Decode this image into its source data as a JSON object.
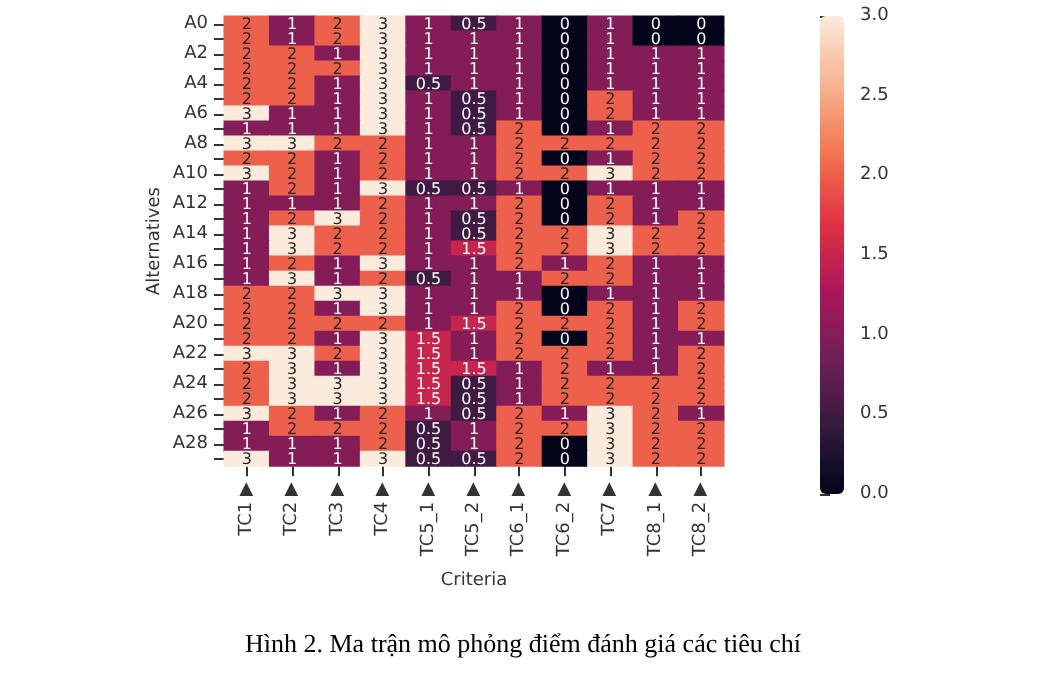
{
  "chart_data": {
    "type": "heatmap",
    "xlabel": "Criteria",
    "ylabel": "Alternatives",
    "annotations": [
      "Hình 2. Ma trận mô phỏng điểm đánh giá các tiêu chí"
    ],
    "categories": [
      "TC1 ▶",
      "TC2 ▶",
      "TC3 ▶",
      "TC4 ▶",
      "TC5_1 ▶",
      "TC5_2 ▶",
      "TC6_1 ▶",
      "TC6_2 ▶",
      "TC7 ▶",
      "TC8_1 ▶",
      "TC8_2 ▶"
    ],
    "y_categories": [
      "A0",
      null,
      "A2",
      null,
      "A4",
      null,
      "A6",
      null,
      "A8",
      null,
      "A10",
      null,
      "A12",
      null,
      "A14",
      null,
      "A16",
      null,
      "A18",
      null,
      "A20",
      null,
      "A22",
      null,
      "A24",
      null,
      "A26",
      null,
      "A28",
      null
    ],
    "cells": [
      [
        2,
        1,
        2,
        3,
        1,
        0.5,
        1,
        0,
        1,
        0,
        0
      ],
      [
        2,
        1,
        2,
        3,
        1,
        1,
        1,
        0,
        1,
        0,
        0
      ],
      [
        2,
        2,
        1,
        3,
        1,
        1,
        1,
        0,
        1,
        1,
        1
      ],
      [
        2,
        2,
        2,
        3,
        1,
        1,
        1,
        0,
        1,
        1,
        1
      ],
      [
        2,
        2,
        1,
        3,
        0.5,
        1,
        1,
        0,
        1,
        1,
        1
      ],
      [
        2,
        2,
        1,
        3,
        1,
        0.5,
        1,
        0,
        2,
        1,
        1
      ],
      [
        3,
        1,
        1,
        3,
        1,
        0.5,
        1,
        0,
        2,
        1,
        1
      ],
      [
        1,
        1,
        1,
        3,
        1,
        0.5,
        2,
        0,
        1,
        2,
        2
      ],
      [
        3,
        3,
        2,
        2,
        1,
        1,
        2,
        2,
        2,
        2,
        2
      ],
      [
        2,
        2,
        1,
        2,
        1,
        1,
        2,
        0,
        1,
        2,
        2
      ],
      [
        3,
        2,
        1,
        2,
        1,
        1,
        2,
        2,
        3,
        2,
        2
      ],
      [
        1,
        2,
        1,
        3,
        0.5,
        0.5,
        1,
        0,
        1,
        1,
        1
      ],
      [
        1,
        1,
        1,
        2,
        1,
        1,
        2,
        0,
        2,
        1,
        1
      ],
      [
        1,
        2,
        3,
        2,
        1,
        0.5,
        2,
        0,
        2,
        1,
        2
      ],
      [
        1,
        3,
        2,
        2,
        1,
        0.5,
        2,
        2,
        3,
        2,
        2
      ],
      [
        1,
        3,
        2,
        2,
        1,
        1.5,
        2,
        2,
        3,
        2,
        2
      ],
      [
        1,
        2,
        1,
        3,
        1,
        1,
        2,
        1,
        2,
        1,
        1
      ],
      [
        1,
        3,
        1,
        2,
        0.5,
        1,
        1,
        2,
        2,
        1,
        1
      ],
      [
        2,
        2,
        3,
        3,
        1,
        1,
        1,
        0,
        1,
        1,
        1
      ],
      [
        2,
        2,
        1,
        3,
        1,
        1,
        2,
        0,
        2,
        1,
        2
      ],
      [
        2,
        2,
        2,
        2,
        1,
        1.5,
        2,
        2,
        2,
        1,
        2
      ],
      [
        2,
        2,
        1,
        3,
        1.5,
        1,
        2,
        0,
        2,
        1,
        1
      ],
      [
        3,
        3,
        2,
        3,
        1.5,
        1,
        2,
        2,
        2,
        1,
        2
      ],
      [
        2,
        3,
        1,
        3,
        1.5,
        1.5,
        1,
        2,
        1,
        1,
        2
      ],
      [
        2,
        3,
        3,
        3,
        1.5,
        0.5,
        1,
        2,
        2,
        2,
        2
      ],
      [
        2,
        3,
        3,
        3,
        1.5,
        0.5,
        1,
        2,
        2,
        2,
        2
      ],
      [
        3,
        2,
        1,
        2,
        1,
        0.5,
        2,
        1,
        3,
        2,
        1
      ],
      [
        1,
        2,
        2,
        2,
        0.5,
        1,
        2,
        2,
        3,
        2,
        2
      ],
      [
        1,
        1,
        1,
        2,
        0.5,
        1,
        2,
        0,
        3,
        2,
        2
      ],
      [
        3,
        1,
        1,
        3,
        0.5,
        0.5,
        2,
        0,
        3,
        2,
        2
      ]
    ],
    "data_labels": true,
    "clim": [
      0,
      3
    ],
    "cticks": [
      {
        "value": 0,
        "label": "0.0"
      },
      {
        "value": 0.5,
        "label": "0.5"
      },
      {
        "value": 1,
        "label": "1.0"
      },
      {
        "value": 1.5,
        "label": "1.5"
      },
      {
        "value": 2,
        "label": "2.0"
      },
      {
        "value": 2.5,
        "label": "2.5"
      },
      {
        "value": 3,
        "label": "3.0"
      }
    ]
  }
}
